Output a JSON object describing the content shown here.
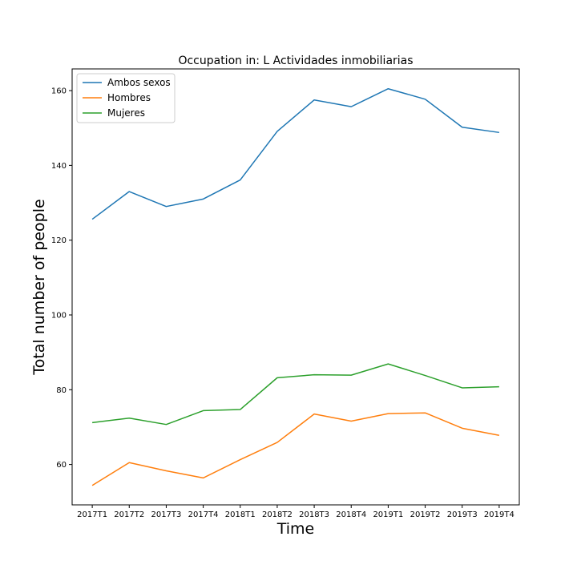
{
  "chart_data": {
    "type": "line",
    "title": "Occupation in: L Actividades inmobiliarias",
    "xlabel": "Time",
    "ylabel": "Total number of people",
    "categories": [
      "2017T1",
      "2017T2",
      "2017T3",
      "2017T4",
      "2018T1",
      "2018T2",
      "2018T3",
      "2018T4",
      "2019T1",
      "2019T2",
      "2019T3",
      "2019T4"
    ],
    "ylim": [
      49.2,
      165.8
    ],
    "yticks": [
      60,
      80,
      100,
      120,
      140,
      160
    ],
    "grid": false,
    "legend_position": "top-left",
    "series": [
      {
        "name": "Ambos sexos",
        "color": "#1f77b4",
        "values": [
          125.6,
          133.0,
          129.0,
          131.0,
          136.1,
          149.1,
          157.5,
          155.7,
          160.5,
          157.7,
          150.2,
          148.8
        ]
      },
      {
        "name": "Hombres",
        "color": "#ff7f0e",
        "values": [
          54.4,
          60.5,
          58.3,
          56.4,
          61.3,
          65.9,
          73.5,
          71.6,
          73.6,
          73.8,
          69.7,
          67.8
        ]
      },
      {
        "name": "Mujeres",
        "color": "#2ca02c",
        "values": [
          71.2,
          72.4,
          70.7,
          74.4,
          74.7,
          83.2,
          84.0,
          83.9,
          86.9,
          83.8,
          80.5,
          80.8
        ]
      }
    ]
  }
}
